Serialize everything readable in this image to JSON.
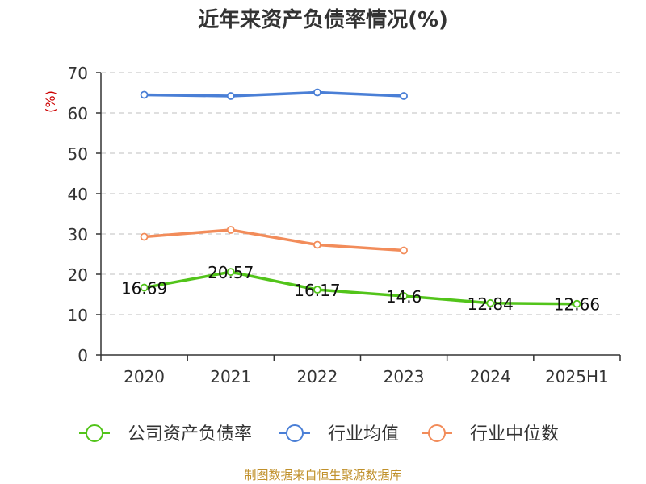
{
  "chart_data": {
    "type": "line",
    "title": "近年来资产负债率情况(%)",
    "ylabel": "(%)",
    "xlabel": "",
    "categories": [
      "2020",
      "2021",
      "2022",
      "2023",
      "2024",
      "2025H1"
    ],
    "ylim": [
      0,
      70
    ],
    "yticks": [
      "0",
      "10",
      "20",
      "30",
      "40",
      "50",
      "60",
      "70"
    ],
    "grid": "horizontal-dashed",
    "legend_position": "bottom",
    "series": [
      {
        "name": "公司资产负债率",
        "color": "#52c41a",
        "values": [
          16.69,
          20.57,
          16.17,
          14.6,
          12.84,
          12.66
        ],
        "labels": [
          "16.69",
          "20.57",
          "16.17",
          "14.6",
          "12.84",
          "12.66"
        ]
      },
      {
        "name": "行业均值",
        "color": "#4a7fd6",
        "values": [
          64.5,
          64.2,
          65.1,
          64.2,
          null,
          null
        ]
      },
      {
        "name": "行业中位数",
        "color": "#f28c5a",
        "values": [
          29.3,
          31.0,
          27.3,
          25.9,
          null,
          null
        ]
      }
    ],
    "source": "制图数据来自恒生聚源数据库"
  }
}
